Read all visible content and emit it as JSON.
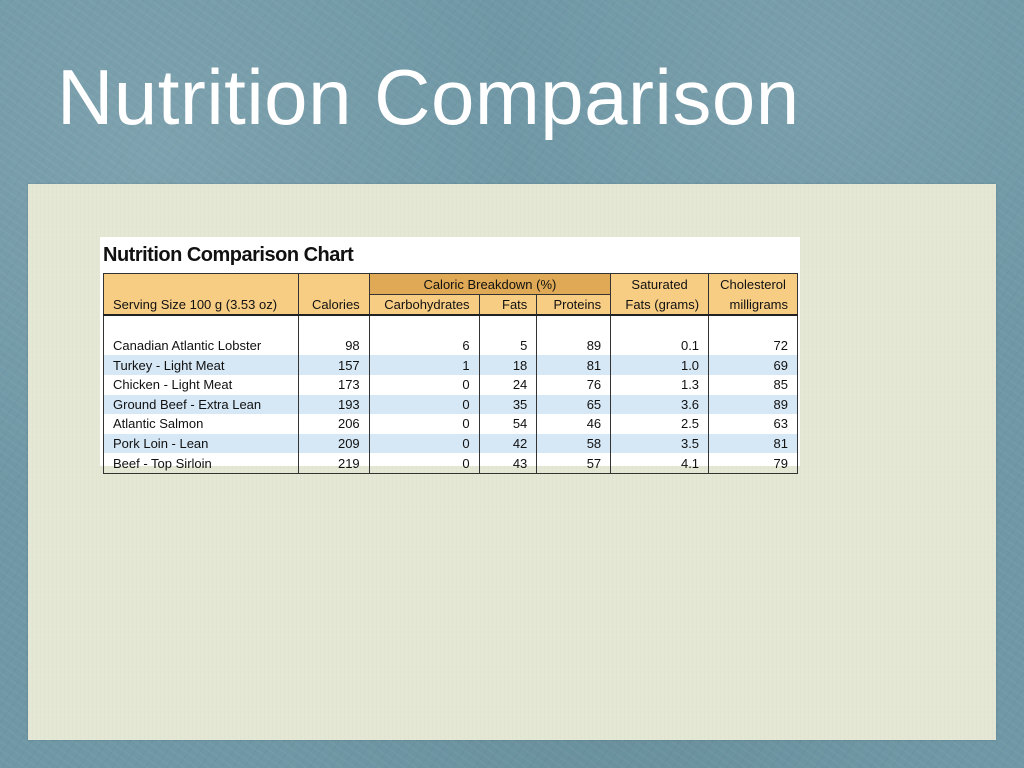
{
  "slide": {
    "title": "Nutrition Comparison"
  },
  "chart": {
    "title": "Nutrition Comparison Chart",
    "header": {
      "group_label": "Caloric Breakdown (%)",
      "saturated_top": "Saturated",
      "saturated_bottom": "Fats (grams)",
      "cholesterol_top": "Cholesterol",
      "cholesterol_bottom": "milligrams",
      "serving": "Serving Size 100 g (3.53 oz)",
      "calories": "Calories",
      "carbs": "Carbohydrates",
      "fats": "Fats",
      "proteins": "Proteins"
    },
    "rows": [
      {
        "name": "Canadian Atlantic Lobster",
        "calories": "98",
        "carbs": "6",
        "fats": "5",
        "proteins": "89",
        "sat_fat": "0.1",
        "cholesterol": "72"
      },
      {
        "name": "Turkey - Light Meat",
        "calories": "157",
        "carbs": "1",
        "fats": "18",
        "proteins": "81",
        "sat_fat": "1.0",
        "cholesterol": "69"
      },
      {
        "name": "Chicken - Light Meat",
        "calories": "173",
        "carbs": "0",
        "fats": "24",
        "proteins": "76",
        "sat_fat": "1.3",
        "cholesterol": "85"
      },
      {
        "name": "Ground Beef - Extra Lean",
        "calories": "193",
        "carbs": "0",
        "fats": "35",
        "proteins": "65",
        "sat_fat": "3.6",
        "cholesterol": "89"
      },
      {
        "name": "Atlantic Salmon",
        "calories": "206",
        "carbs": "0",
        "fats": "54",
        "proteins": "46",
        "sat_fat": "2.5",
        "cholesterol": "63"
      },
      {
        "name": "Pork Loin - Lean",
        "calories": "209",
        "carbs": "0",
        "fats": "42",
        "proteins": "58",
        "sat_fat": "3.5",
        "cholesterol": "81"
      },
      {
        "name": "Beef - Top Sirloin",
        "calories": "219",
        "carbs": "0",
        "fats": "43",
        "proteins": "57",
        "sat_fat": "4.1",
        "cholesterol": "79"
      }
    ]
  },
  "colors": {
    "background": "#6f97a5",
    "panel": "#e5e7d5",
    "header_light": "#f7cd84",
    "header_dark": "#e0a955",
    "row_shade": "#d6e7f5"
  }
}
